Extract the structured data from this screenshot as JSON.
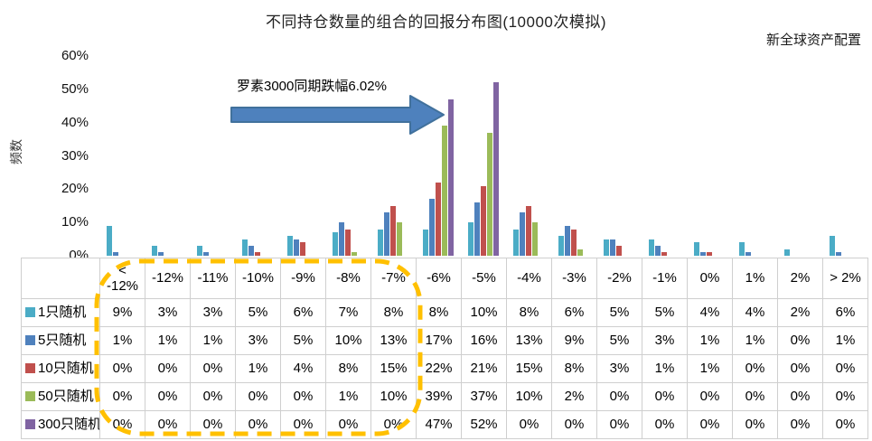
{
  "title": "不同持仓数量的组合的回报分布图(10000次模拟)",
  "watermark": "新全球资产配置",
  "annotation": {
    "text": "罗素3000同期跌幅6.02%",
    "arrow_color": "#4E81BD",
    "arrow_border_color": "#41719C"
  },
  "highlight": {
    "shape": "dashed-oval",
    "color": "#FFC000",
    "region_columns": "< -12% 至 -7%"
  },
  "chart_data": {
    "type": "bar",
    "title": "不同持仓数量的组合的回报分布图(10000次模拟)",
    "xlabel": "",
    "ylabel": "频数",
    "ylim": [
      0,
      60
    ],
    "yticks": [
      "0%",
      "10%",
      "20%",
      "30%",
      "40%",
      "50%",
      "60%"
    ],
    "grid": false,
    "legend_position": "table-left",
    "value_suffix": "%",
    "categories": [
      "< -12%",
      "-12%",
      "-11%",
      "-10%",
      "-9%",
      "-8%",
      "-7%",
      "-6%",
      "-5%",
      "-4%",
      "-3%",
      "-2%",
      "-1%",
      "0%",
      "1%",
      "2%",
      "> 2%"
    ],
    "series": [
      {
        "name": "1只随机",
        "color": "#4BACC6",
        "values": [
          9,
          3,
          3,
          5,
          6,
          7,
          8,
          8,
          10,
          8,
          6,
          5,
          5,
          4,
          4,
          2,
          6
        ]
      },
      {
        "name": "5只随机",
        "color": "#4F81BD",
        "values": [
          1,
          1,
          1,
          3,
          5,
          10,
          13,
          17,
          16,
          13,
          9,
          5,
          3,
          1,
          1,
          0,
          1
        ]
      },
      {
        "name": "10只随机",
        "color": "#C0504D",
        "values": [
          0,
          0,
          0,
          1,
          4,
          8,
          15,
          22,
          21,
          15,
          8,
          3,
          1,
          1,
          0,
          0,
          0
        ]
      },
      {
        "name": "50只随机",
        "color": "#9BBB59",
        "values": [
          0,
          0,
          0,
          0,
          0,
          1,
          10,
          39,
          37,
          10,
          2,
          0,
          0,
          0,
          0,
          0,
          0
        ]
      },
      {
        "name": "300只随机",
        "color": "#8064A2",
        "values": [
          0,
          0,
          0,
          0,
          0,
          0,
          0,
          47,
          52,
          0,
          0,
          0,
          0,
          0,
          0,
          0,
          0
        ]
      }
    ]
  }
}
